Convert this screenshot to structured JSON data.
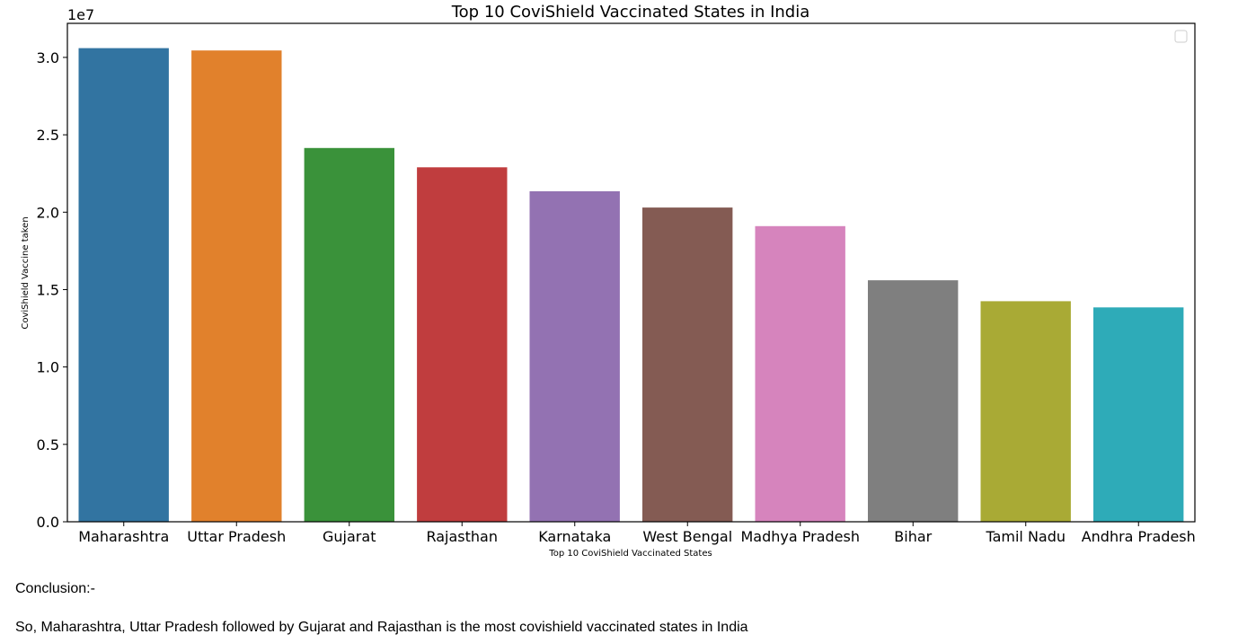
{
  "chart_data": {
    "type": "bar",
    "title": "Top 10 CoviShield Vaccinated States in India",
    "xlabel": "Top 10 CoviShield Vaccinated States",
    "ylabel": "CoviShield Vaccine taken",
    "y_offset_label": "1e7",
    "categories": [
      "Maharashtra",
      "Uttar Pradesh",
      "Gujarat",
      "Rajasthan",
      "Karnataka",
      "West Bengal",
      "Madhya Pradesh",
      "Bihar",
      "Tamil Nadu",
      "Andhra Pradesh"
    ],
    "values": [
      30600000,
      30450000,
      24150000,
      22900000,
      21350000,
      20300000,
      19100000,
      15600000,
      14250000,
      13850000
    ],
    "colors": [
      "#3274a1",
      "#e1812c",
      "#3a923a",
      "#c03d3e",
      "#9372b2",
      "#845b53",
      "#d684bd",
      "#7f7f7f",
      "#a9aa35",
      "#2eabb8"
    ],
    "ylim": [
      0,
      32200000
    ],
    "yticks": [
      0,
      5000000,
      10000000,
      15000000,
      20000000,
      25000000,
      30000000
    ],
    "ytick_labels": [
      "0.0",
      "0.5",
      "1.0",
      "1.5",
      "2.0",
      "2.5",
      "3.0"
    ],
    "grid": false,
    "legend": "top-right (empty)"
  },
  "conclusion": {
    "heading": "Conclusion:-",
    "text": "So, Maharashtra, Uttar Pradesh followed by Gujarat and Rajasthan is the most covishield vaccinated states in India"
  }
}
